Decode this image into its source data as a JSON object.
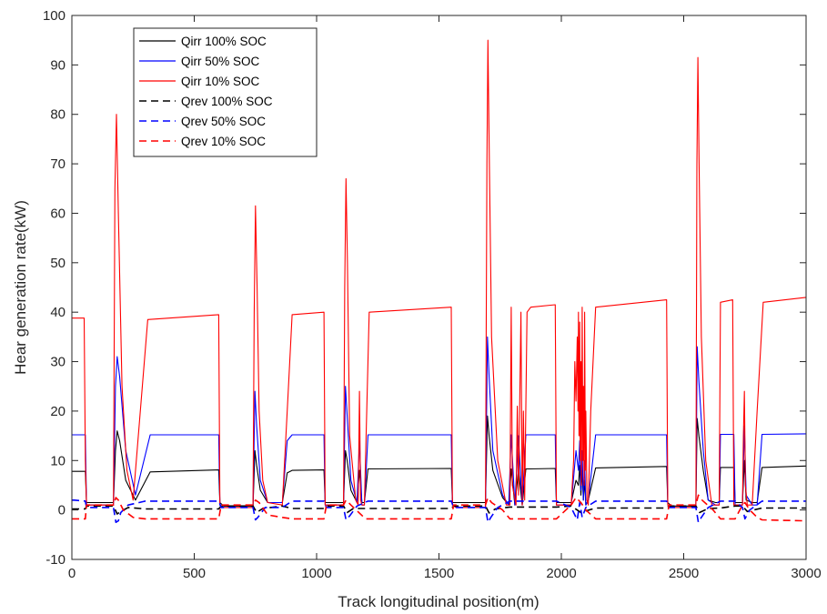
{
  "chart_data": {
    "type": "line",
    "title": "",
    "xlabel": "Track longitudinal position(m)",
    "ylabel": "Hear generation rate(kW)",
    "xlim": [
      0,
      3000
    ],
    "ylim": [
      -10,
      100
    ],
    "xticks": [
      "0",
      "500",
      "1000",
      "1500",
      "2000",
      "2500",
      "3000"
    ],
    "yticks": [
      "-10",
      "0",
      "10",
      "20",
      "30",
      "40",
      "50",
      "60",
      "70",
      "80",
      "90",
      "100"
    ],
    "grid": false,
    "legend_position": "top-left",
    "series": [
      {
        "name": "Qirr 100% SOC",
        "color": "#000000",
        "dash": "solid",
        "x": [
          0,
          55,
          60,
          170,
          178,
          185,
          195,
          220,
          260,
          320,
          600,
          605,
          620,
          740,
          748,
          755,
          770,
          800,
          860,
          880,
          900,
          1030,
          1035,
          1110,
          1118,
          1125,
          1140,
          1165,
          1175,
          1185,
          1195,
          1210,
          1550,
          1555,
          1570,
          1690,
          1698,
          1705,
          1720,
          1760,
          1785,
          1795,
          1810,
          1825,
          1840,
          1855,
          1870,
          1975,
          1980,
          1995,
          2040,
          2060,
          2070,
          2075,
          2080,
          2085,
          2090,
          2095,
          2100,
          2110,
          2140,
          2430,
          2435,
          2450,
          2550,
          2555,
          2562,
          2580,
          2600,
          2630,
          2645,
          2650,
          2705,
          2710,
          2740,
          2748,
          2755,
          2780,
          2800,
          2820,
          3000
        ],
        "y": [
          7.8,
          7.8,
          1.5,
          1.5,
          12,
          16,
          14,
          6,
          2,
          7.7,
          8.1,
          1.5,
          0.8,
          0.8,
          12,
          9,
          4,
          1.5,
          1.5,
          7.5,
          8,
          8.1,
          1.5,
          1.5,
          12,
          10,
          4,
          1.5,
          8,
          1.5,
          1.5,
          8.3,
          8.4,
          1.5,
          1.5,
          1.5,
          19,
          15,
          8,
          2.5,
          1,
          8.3,
          1,
          8,
          1,
          8.3,
          8.3,
          8.4,
          1.5,
          1.5,
          1.5,
          6,
          5,
          9,
          3,
          8,
          2,
          6,
          1,
          2,
          8.5,
          8.8,
          1.5,
          0.8,
          0.8,
          18.5,
          15,
          8,
          2,
          1.5,
          1.5,
          8.6,
          8.6,
          1.5,
          1.5,
          10,
          2,
          1.5,
          1.5,
          8.6,
          8.9
        ]
      },
      {
        "name": "Qirr 50% SOC",
        "color": "#0000ff",
        "dash": "solid",
        "x": [
          0,
          55,
          60,
          170,
          178,
          185,
          195,
          220,
          260,
          320,
          600,
          605,
          620,
          740,
          748,
          755,
          770,
          800,
          860,
          880,
          900,
          1030,
          1035,
          1110,
          1118,
          1125,
          1140,
          1165,
          1175,
          1185,
          1195,
          1210,
          1550,
          1555,
          1570,
          1690,
          1698,
          1705,
          1720,
          1760,
          1785,
          1795,
          1810,
          1825,
          1840,
          1855,
          1870,
          1975,
          1980,
          1995,
          2040,
          2060,
          2070,
          2075,
          2080,
          2085,
          2090,
          2095,
          2100,
          2110,
          2140,
          2430,
          2435,
          2450,
          2550,
          2555,
          2562,
          2580,
          2600,
          2630,
          2645,
          2650,
          2705,
          2710,
          2740,
          2748,
          2755,
          2780,
          2800,
          2820,
          3000
        ],
        "y": [
          15.2,
          15.2,
          1,
          1,
          25,
          31,
          27,
          12,
          3,
          15.2,
          15.2,
          1,
          0.5,
          0.5,
          24,
          17,
          6,
          1.5,
          1.5,
          14,
          15.2,
          15.2,
          1,
          1,
          25,
          19,
          6,
          1.5,
          14,
          1,
          1,
          15.2,
          15.2,
          1,
          0.5,
          0.5,
          35,
          27,
          12,
          3,
          1,
          15.2,
          1,
          15,
          1,
          15.2,
          15.2,
          15.2,
          1,
          1,
          1,
          12,
          8,
          14,
          4,
          12,
          2,
          10,
          1,
          2,
          15.2,
          15.2,
          1,
          0.5,
          0.5,
          33,
          26,
          12,
          2,
          1,
          1,
          15.3,
          15.3,
          1,
          1,
          17,
          3,
          1,
          1,
          15.3,
          15.4
        ]
      },
      {
        "name": "Qirr 10% SOC",
        "color": "#ff0000",
        "dash": "solid",
        "x": [
          0,
          50,
          55,
          60,
          170,
          176,
          182,
          190,
          205,
          225,
          250,
          310,
          600,
          605,
          620,
          740,
          745,
          750,
          757,
          765,
          780,
          800,
          860,
          880,
          900,
          1030,
          1035,
          1110,
          1115,
          1120,
          1126,
          1135,
          1160,
          1170,
          1175,
          1180,
          1185,
          1195,
          1205,
          1215,
          1550,
          1555,
          1570,
          1690,
          1696,
          1700,
          1706,
          1715,
          1740,
          1775,
          1790,
          1795,
          1800,
          1815,
          1820,
          1825,
          1835,
          1840,
          1845,
          1850,
          1860,
          1875,
          1975,
          1980,
          1995,
          2040,
          2050,
          2055,
          2060,
          2065,
          2068,
          2070,
          2072,
          2075,
          2077,
          2080,
          2082,
          2085,
          2088,
          2090,
          2093,
          2095,
          2098,
          2100,
          2105,
          2110,
          2120,
          2140,
          2430,
          2435,
          2450,
          2550,
          2554,
          2558,
          2563,
          2572,
          2590,
          2615,
          2645,
          2650,
          2700,
          2705,
          2740,
          2744,
          2748,
          2752,
          2760,
          2780,
          2800,
          2825,
          3000
        ],
        "y": [
          38.8,
          38.8,
          10,
          1,
          1,
          65,
          80,
          60,
          25,
          8,
          2,
          38.5,
          39.5,
          1,
          0.5,
          0.5,
          40,
          61.5,
          45,
          20,
          6,
          1.5,
          1,
          20,
          39.5,
          40,
          1,
          1,
          45,
          67,
          50,
          15,
          2,
          1,
          24,
          2,
          1,
          1,
          20,
          40,
          41,
          1,
          0.5,
          0.5,
          70,
          95,
          70,
          35,
          10,
          1,
          1,
          41,
          5,
          1,
          21,
          3,
          40,
          1,
          20,
          2,
          40,
          41,
          41.5,
          1,
          1,
          1,
          10,
          30,
          22,
          35,
          20,
          40,
          15,
          38,
          10,
          30,
          5,
          41,
          10,
          25,
          5,
          40,
          8,
          20,
          2,
          1,
          20,
          41,
          42.5,
          1,
          0.5,
          0.5,
          70,
          91.5,
          70,
          35,
          10,
          1,
          1,
          42,
          42.5,
          1,
          1,
          15,
          24,
          5,
          1,
          1,
          20,
          42,
          43
        ]
      },
      {
        "name": "Qrev 100% SOC",
        "color": "#000000",
        "dash": "dashed",
        "x": [
          0,
          55,
          60,
          170,
          185,
          200,
          230,
          300,
          600,
          610,
          740,
          755,
          780,
          860,
          900,
          1030,
          1040,
          1110,
          1125,
          1150,
          1210,
          1550,
          1560,
          1690,
          1705,
          1730,
          1790,
          1980,
          2040,
          2080,
          2140,
          2430,
          2440,
          2550,
          2565,
          2600,
          2650,
          2710,
          2740,
          2760,
          2820,
          3000
        ],
        "y": [
          0.2,
          0.2,
          0.8,
          0.8,
          -0.8,
          -0.3,
          0.5,
          0.2,
          0.2,
          0.8,
          0.8,
          -0.5,
          0.3,
          0.8,
          0.3,
          0.3,
          0.8,
          0.8,
          -0.5,
          0.3,
          0.3,
          0.3,
          0.8,
          0.8,
          -0.6,
          0.2,
          0.6,
          0.6,
          0.8,
          -0.5,
          0.4,
          0.4,
          0.8,
          0.8,
          -0.5,
          0.3,
          0.4,
          0.8,
          0.8,
          -0.3,
          0.4,
          0.4
        ]
      },
      {
        "name": "Qrev 50% SOC",
        "color": "#0000ff",
        "dash": "dashed",
        "x": [
          0,
          10,
          55,
          60,
          170,
          180,
          190,
          200,
          230,
          300,
          600,
          610,
          740,
          750,
          760,
          790,
          860,
          900,
          1030,
          1040,
          1110,
          1120,
          1135,
          1165,
          1210,
          1550,
          1560,
          1690,
          1700,
          1712,
          1740,
          1790,
          1980,
          2040,
          2065,
          2075,
          2085,
          2100,
          2140,
          2430,
          2440,
          2550,
          2560,
          2572,
          2600,
          2650,
          2710,
          2740,
          2750,
          2770,
          2820,
          3000
        ],
        "y": [
          2,
          2,
          1.8,
          0.5,
          0.5,
          -2.5,
          -2.2,
          -0.5,
          1,
          1.8,
          1.8,
          0.5,
          0.5,
          -2,
          -1.5,
          0.5,
          0.5,
          1.8,
          1.8,
          0.5,
          0.5,
          -2,
          -1.2,
          0.8,
          1.8,
          1.8,
          0.5,
          0.5,
          -2.5,
          -1.5,
          0.5,
          1.8,
          1.8,
          0.5,
          -2,
          1.5,
          -1.5,
          0.5,
          1.8,
          1.8,
          0.5,
          0.5,
          -2.5,
          -1.5,
          0.5,
          1.8,
          1.8,
          0.5,
          -1.8,
          0,
          1.8,
          1.8
        ]
      },
      {
        "name": "Qrev 10% SOC",
        "color": "#ff0000",
        "dash": "dashed",
        "x": [
          0,
          55,
          60,
          170,
          180,
          190,
          210,
          250,
          300,
          600,
          610,
          740,
          750,
          765,
          800,
          860,
          900,
          1030,
          1040,
          1110,
          1120,
          1140,
          1200,
          1550,
          1560,
          1690,
          1700,
          1715,
          1760,
          1790,
          1980,
          2040,
          2060,
          2080,
          2100,
          2140,
          2430,
          2440,
          2550,
          2560,
          2575,
          2620,
          2650,
          2710,
          2740,
          2750,
          2770,
          2800,
          2820,
          3000
        ],
        "y": [
          -1.8,
          -1.8,
          1,
          1,
          2.5,
          2,
          0,
          -1.5,
          -1.8,
          -1.8,
          1,
          1,
          2,
          1.5,
          -1,
          -1.5,
          -1.8,
          -1.8,
          1,
          1,
          2,
          1,
          -1.8,
          -1.8,
          1,
          1,
          2.5,
          1.5,
          0,
          -1.8,
          -1.8,
          1,
          2.5,
          1.5,
          0,
          -1.8,
          -1.8,
          1,
          1,
          3,
          2,
          0,
          -1.8,
          -1.8,
          1,
          1.5,
          0,
          -1.5,
          -2,
          -2.2
        ]
      }
    ]
  }
}
